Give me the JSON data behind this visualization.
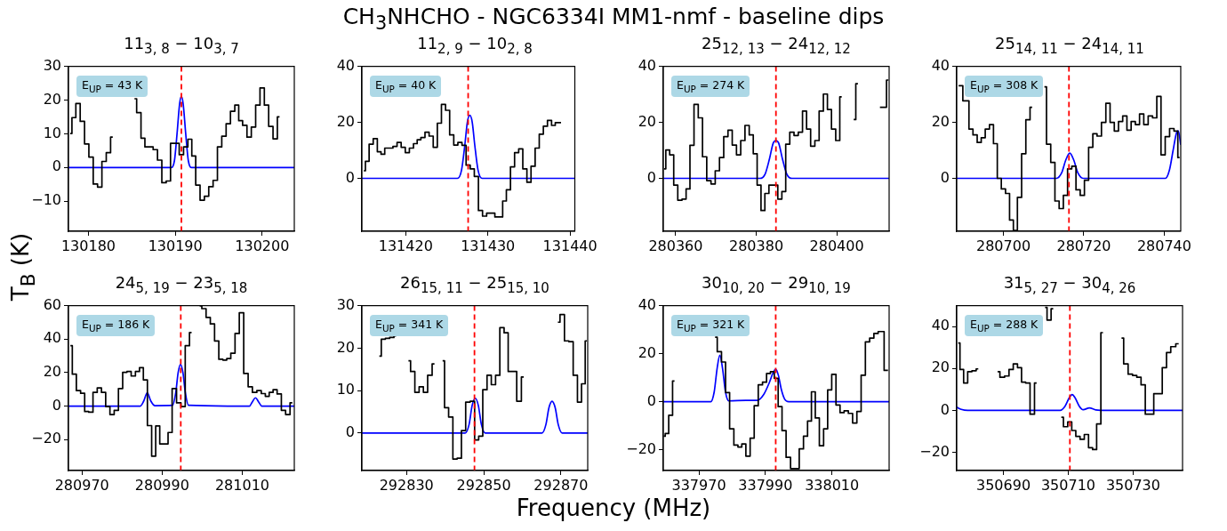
{
  "chart_data": [
    {
      "type": "other",
      "title": "CH$_{3}$NHCHO - NGC6334I MM1-nmf - baseline dips",
      "xlabel": "Frequency (MHz)",
      "ylabel": "T$_{B}$ (K)"
    },
    {
      "type": "step",
      "title": "11$_{3, 8}$ − 10$_{3, 7}$",
      "annotations": [
        "E$_{UP}$ = 43 K"
      ],
      "xlim": [
        130177.7,
        130203.7
      ],
      "xticks": [
        130180,
        130190,
        130200
      ],
      "ylim": [
        -18.9,
        30
      ],
      "yticks": [
        -10,
        0,
        10,
        20,
        30
      ],
      "ref_lines": [
        {
          "axis": "x",
          "value": 130190.7,
          "color": "#ff0000",
          "line_style": "dashed"
        }
      ],
      "series": [
        {
          "type": "step",
          "color": "#000000",
          "x": [
            130177.9,
            130178.3,
            130178.8,
            130179.3,
            130179.8,
            130180.3,
            130180.8,
            130181.3,
            130181.8,
            130182.3,
            130182.8,
            130183.3,
            130185.3,
            130185.8,
            130186.3,
            130186.7,
            130187.2,
            130187.7,
            130188.2,
            130188.7,
            130189.2,
            130189.7,
            130190.2,
            130190.7,
            130191.2,
            130191.7,
            130192.1,
            130192.6,
            130193.1,
            130193.6,
            130194.1,
            130194.6,
            130195.1,
            130195.6,
            130196.1,
            130196.6,
            130197.1,
            130197.5,
            130198.0,
            130198.5,
            130199.0,
            130199.5,
            130200.0,
            130200.5,
            130201.0,
            130201.5,
            130202.0
          ],
          "values": [
            10.1,
            14.8,
            19,
            13.7,
            7,
            3.1,
            -4.9,
            -5.8,
            1.8,
            4.4,
            9,
            null,
            20.4,
            16.3,
            8.7,
            6.1,
            6.1,
            5.3,
            2.2,
            -4.5,
            -4,
            7.2,
            7.2,
            3.8,
            6.1,
            8.4,
            3.4,
            -5.2,
            -9.7,
            -8.5,
            -5.7,
            -3.8,
            6.1,
            9.3,
            13,
            16.7,
            18.5,
            13.9,
            12.5,
            9,
            12,
            18.5,
            23.6,
            18.5,
            12.2,
            8.5,
            15
          ]
        },
        {
          "type": "line",
          "color": "#0000ff",
          "x": [
            130177.7,
            130189.5,
            130189.9,
            130190.2,
            130190.5,
            130190.7,
            130190.9,
            130191.2,
            130191.5,
            130191.9,
            130203.7
          ],
          "values": [
            0,
            0,
            2,
            10,
            19,
            21,
            19,
            10,
            2,
            0,
            0
          ]
        }
      ]
    },
    {
      "type": "step",
      "title": "11$_{2, 9}$ − 10$_{2, 8}$",
      "annotations": [
        "E$_{UP}$ = 40 K"
      ],
      "xlim": [
        131414.67,
        131440.58
      ],
      "xticks": [
        131420,
        131430,
        131440
      ],
      "ylim": [
        -18.9,
        40
      ],
      "yticks": [
        0,
        20,
        40
      ],
      "ref_lines": [
        {
          "axis": "x",
          "value": 131427.6,
          "color": "#ff0000",
          "line_style": "dashed"
        }
      ],
      "series": [
        {
          "type": "step",
          "color": "#000000",
          "x": [
            131414.9,
            131415.3,
            131415.8,
            131416.3,
            131416.8,
            131417.2,
            131417.7,
            131418.2,
            131418.7,
            131419.2,
            131419.7,
            131420.2,
            131420.7,
            131421.2,
            131421.6,
            131422.1,
            131422.6,
            131423.1,
            131423.6,
            131424.1,
            131424.6,
            131425.1,
            131425.6,
            131426.1,
            131426.6,
            131427.1,
            131427.6,
            131428.1,
            131428.6,
            131429.1,
            131429.6,
            131430.1,
            131430.6,
            131431.1,
            131431.6,
            131432.0,
            131432.5,
            131433.0,
            131433.5,
            131434.0,
            131434.5,
            131435.0,
            131435.5,
            131436.0,
            131436.5,
            131437.0,
            131437.5,
            131438.0,
            131438.4,
            131438.9
          ],
          "values": [
            2.7,
            6.1,
            12.2,
            14.2,
            9.5,
            8.6,
            10.8,
            10.8,
            11.4,
            12.8,
            11.1,
            9.2,
            10.8,
            12.4,
            13.8,
            14.6,
            16.5,
            15.1,
            11.1,
            19.7,
            26.4,
            24.3,
            15.5,
            11.9,
            12.8,
            11.8,
            4.7,
            3.4,
            0.7,
            -11.5,
            -13.5,
            -12.4,
            -12.4,
            -13.8,
            -13.8,
            -8.1,
            -4.1,
            4.1,
            9.2,
            10.5,
            3.4,
            -1.4,
            4.3,
            10.8,
            15.8,
            18.6,
            20.7,
            18.9,
            19.9,
            19.9
          ]
        },
        {
          "type": "line",
          "color": "#0000ff",
          "x": [
            131414.67,
            131426.3,
            131426.8,
            131427.2,
            131427.5,
            131427.8,
            131428.1,
            131428.4,
            131428.8,
            131429.3,
            131440.58
          ],
          "values": [
            0,
            0,
            3,
            12,
            20,
            22.5,
            20,
            12,
            3,
            0,
            0
          ]
        }
      ]
    },
    {
      "type": "step",
      "title": "25$_{12, 13}$ − 24$_{12, 12}$",
      "annotations": [
        "E$_{UP}$ = 274 K"
      ],
      "xlim": [
        280356.93,
        280413.0
      ],
      "xticks": [
        280360,
        280380,
        280400
      ],
      "ylim": [
        -18.9,
        40
      ],
      "yticks": [
        0,
        20,
        40
      ],
      "ref_lines": [
        {
          "axis": "x",
          "value": 280384.9,
          "color": "#ff0000",
          "line_style": "dashed"
        }
      ],
      "series": [
        {
          "type": "step",
          "color": "#000000",
          "x": [
            280357.12,
            280357.99,
            280359.04,
            280360.0,
            280361.05,
            280362.11,
            280363.07,
            280364.03,
            280365.08,
            280366.14,
            280367.19,
            280368.25,
            280369.3,
            280370.35,
            280371.41,
            280372.46,
            280373.52,
            280374.57,
            280375.63,
            280376.68,
            280377.74,
            280378.79,
            280379.75,
            280380.71,
            280381.67,
            280382.63,
            280383.68,
            280384.83,
            280385.89,
            280386.85,
            280387.8,
            280388.86,
            280389.91,
            280390.97,
            280392.02,
            280392.98,
            280394.04,
            280395.09,
            280396.15,
            280397.2,
            280398.16,
            280399.21,
            280400.27,
            280401.23,
            280402.28,
            280404.2,
            280405.25,
            280406.4,
            280410.72,
            280411.87,
            280412.83
          ],
          "values": [
            3.4,
            10.1,
            8.4,
            -2.4,
            -7.8,
            -7.4,
            -3.8,
            11.8,
            26.4,
            21.6,
            7.7,
            -0.8,
            -2,
            2.7,
            7.4,
            14.9,
            17.2,
            11.9,
            8.4,
            13.5,
            18.9,
            15.5,
            8.8,
            -2.4,
            -11.5,
            -5.4,
            -2.4,
            -2.4,
            -7.4,
            -4.7,
            12.2,
            16.5,
            15.3,
            16.5,
            24,
            17.6,
            11.5,
            13.5,
            24,
            30.1,
            24.6,
            17.6,
            13.5,
            29.1,
            null,
            21,
            33.8,
            null,
            25.4,
            25.4,
            35.1
          ]
        },
        {
          "type": "line",
          "color": "#0000ff",
          "x": [
            280356.93,
            280380.9,
            280382.2,
            280383.3,
            280384.2,
            280384.9,
            280385.6,
            280386.5,
            280387.6,
            280388.9,
            280413.0
          ],
          "values": [
            0,
            0,
            1.5,
            7,
            12.5,
            13.5,
            12.5,
            7,
            1.5,
            0,
            0
          ]
        }
      ]
    },
    {
      "type": "step",
      "title": "25$_{14, 11}$ − 24$_{14, 11}$",
      "annotations": [
        "E$_{UP}$ = 308 K"
      ],
      "xlim": [
        280688.38,
        280744.1
      ],
      "xticks": [
        280700,
        280720,
        280740
      ],
      "ylim": [
        -18.9,
        40
      ],
      "yticks": [
        0,
        20,
        40
      ],
      "ref_lines": [
        {
          "axis": "x",
          "value": 280716.3,
          "color": "#ff0000",
          "line_style": "dashed"
        }
      ],
      "series": [
        {
          "type": "step",
          "color": "#000000",
          "x": [
            280688.86,
            280690.95,
            280691.9,
            280692.95,
            280694.0,
            280694.95,
            280696.0,
            280697.05,
            280698.0,
            280698.95,
            280700.0,
            280701.05,
            280702.0,
            280702.95,
            280704.0,
            280705.05,
            280706.1,
            280707.14,
            280708.1,
            280710.19,
            280711.24,
            280712.29,
            280713.33,
            280714.38,
            280715.43,
            280716.48,
            280717.52,
            280718.57,
            280719.62,
            280720.67,
            280721.71,
            280722.76,
            280723.81,
            280724.95,
            280726.0,
            280727.05,
            280728.1,
            280729.14,
            280730.19,
            280731.24,
            280732.29,
            280733.33,
            280734.38,
            280735.43,
            280736.57,
            280737.62,
            280738.67,
            280739.71,
            280740.76,
            280741.9,
            280742.95,
            280743.81
          ],
          "values": [
            33.1,
            27.7,
            17.6,
            15.5,
            12.8,
            14.5,
            17.6,
            19.2,
            12.4,
            0,
            -3.8,
            -5.4,
            -14.9,
            -18.6,
            -6.8,
            8.8,
            20.9,
            25.4,
            null,
            32.7,
            12.2,
            5.7,
            -8.1,
            -10.8,
            -6.1,
            3.4,
            4.3,
            -4.1,
            -6.1,
            -0.7,
            11.1,
            15.9,
            15.1,
            20,
            26.8,
            20,
            16.9,
            20.3,
            22.3,
            17.2,
            20.3,
            19.2,
            23,
            19.2,
            22.3,
            21.6,
            29.3,
            8.4,
            14.9,
            17.8,
            16.9,
            7.4
          ]
        },
        {
          "type": "line",
          "color": "#0000ff",
          "x": [
            280688.38,
            280713.2,
            280714.5,
            280715.5,
            280716.5,
            280717.5,
            280718.5,
            280719.8,
            280740.3,
            280741.3,
            280742.2,
            280743.0,
            280743.5,
            280744.1
          ],
          "values": [
            0,
            0,
            2,
            6.5,
            9,
            6.5,
            2,
            0,
            0,
            3,
            10,
            16,
            17,
            12
          ]
        }
      ]
    },
    {
      "type": "step",
      "title": "24$_{5, 19}$ − 23$_{5, 18}$",
      "annotations": [
        "E$_{UP}$ = 186 K"
      ],
      "xlim": [
        280966.63,
        281022.99
      ],
      "xticks": [
        280970,
        280990,
        281010
      ],
      "ylim": [
        -38.4,
        60
      ],
      "yticks": [
        -20,
        0,
        20,
        40,
        60
      ],
      "ref_lines": [
        {
          "axis": "x",
          "value": 280994.66,
          "color": "#ff0000",
          "line_style": "dashed"
        }
      ],
      "series": [
        {
          "type": "step",
          "color": "#000000",
          "x": [
            280967.11,
            280968.07,
            280969.13,
            280970.19,
            280971.16,
            280972.22,
            280973.28,
            280974.34,
            280975.39,
            280976.45,
            280977.51,
            280978.57,
            280979.63,
            280980.69,
            280981.75,
            280982.81,
            280983.87,
            280984.84,
            280985.8,
            280986.86,
            280987.92,
            280988.88,
            280989.94,
            280991.0,
            280991.97,
            280993.03,
            280994.18,
            280995.24,
            280996.3,
            280997.36,
            280998.32,
            280999.38,
            281000.44,
            281001.5,
            281002.56,
            281003.62,
            281004.68,
            281005.65,
            281006.61,
            281007.67,
            281008.73,
            281009.79,
            281010.94,
            281012.0,
            281013.06,
            281014.22,
            281015.28,
            281016.24,
            281017.21,
            281018.17,
            281019.23,
            281020.29,
            281021.35,
            281022.5
          ],
          "values": [
            36.1,
            19.1,
            9.3,
            7.7,
            -3.2,
            -3.6,
            8.2,
            10.9,
            8.2,
            -0.2,
            -5,
            -2.5,
            10.5,
            20.2,
            20.7,
            18,
            20.7,
            23,
            15.7,
            -11.6,
            -29.8,
            -11.8,
            -22.5,
            -22.5,
            -15.7,
            10.5,
            2,
            -0.2,
            36.1,
            43.9,
            null,
            59.8,
            58.2,
            53,
            49.1,
            38.9,
            28,
            27.5,
            28.4,
            31.6,
            43.4,
            55.7,
            19.5,
            11.6,
            8.2,
            9.3,
            7.5,
            5.9,
            8.2,
            9.8,
            7.3,
            -2.5,
            -5,
            2
          ]
        },
        {
          "type": "line",
          "color": "#0000ff",
          "x": [
            280966.63,
            280984.5,
            280985.4,
            280986.3,
            280987.2,
            280988.2,
            280992.6,
            280993.4,
            280994.0,
            280994.6,
            280995.2,
            280995.8,
            280996.6,
            281011.8,
            281012.5,
            281013.3,
            281014.1,
            281014.9,
            281022.99
          ],
          "values": [
            0,
            0,
            3,
            8,
            3,
            0.3,
            0.5,
            8,
            20,
            25,
            20,
            8,
            0.5,
            0,
            2.5,
            5,
            2.5,
            0,
            0
          ]
        }
      ]
    },
    {
      "type": "step",
      "title": "26$_{15, 11}$ − 25$_{15, 10}$",
      "annotations": [
        "E$_{UP}$ = 341 K"
      ],
      "xlim": [
        292818.44,
        292876.93
      ],
      "xticks": [
        292830,
        292850,
        292870
      ],
      "ylim": [
        -8.8,
        30
      ],
      "yticks": [
        0,
        10,
        20,
        30
      ],
      "ref_lines": [
        {
          "axis": "x",
          "value": 292847.6,
          "color": "#ff0000",
          "line_style": "dashed"
        }
      ],
      "series": [
        {
          "type": "step",
          "color": "#000000",
          "x": [
            292822.96,
            292823.97,
            292825.08,
            292826.18,
            292827.29,
            292828.39,
            292830.5,
            292831.61,
            292832.71,
            292833.82,
            292834.92,
            292836.03,
            292837.24,
            292838.34,
            292839.35,
            292840.35,
            292841.46,
            292842.56,
            292843.67,
            292844.77,
            292845.88,
            292847.09,
            292848.19,
            292849.2,
            292850.3,
            292851.41,
            292852.51,
            292853.62,
            292854.72,
            292855.83,
            292856.83,
            292857.94,
            292859.15,
            292860.35,
            292861.46,
            292869.2,
            292870.3,
            292871.51,
            292872.61,
            292873.72,
            292874.82,
            292875.83,
            292876.73
          ],
          "values": [
            18.1,
            22.1,
            22.3,
            22.5,
            22.9,
            null,
            17,
            14.5,
            9.6,
            10.9,
            9.6,
            13.6,
            16.3,
            null,
            17,
            6,
            3.8,
            -6.1,
            -5.9,
            0.6,
            7.3,
            7.5,
            -1.6,
            -0.7,
            10.2,
            13.6,
            11.4,
            13.6,
            24.8,
            23.6,
            14.5,
            14.5,
            7.5,
            13.2,
            null,
            26.1,
            27.9,
            21.7,
            21.5,
            13.6,
            7.3,
            11.6,
            21.7
          ]
        },
        {
          "type": "line",
          "color": "#0000ff",
          "x": [
            292818.44,
            292845.2,
            292846.2,
            292847.0,
            292847.8,
            292848.6,
            292849.4,
            292850.4,
            292865.1,
            292866.1,
            292866.9,
            292867.7,
            292868.5,
            292869.3,
            292870.3,
            292876.93
          ],
          "values": [
            0,
            0,
            2,
            6.5,
            8.2,
            6.5,
            2,
            0,
            0,
            2,
            6,
            7.5,
            6,
            2,
            0,
            0
          ]
        }
      ]
    },
    {
      "type": "step",
      "title": "30$_{10, 20}$ − 29$_{10, 19}$",
      "annotations": [
        "E$_{UP}$ = 321 K"
      ],
      "xlim": [
        337959.3,
        338027.2
      ],
      "xticks": [
        337970,
        337990,
        338010
      ],
      "ylim": [
        -28.7,
        40
      ],
      "yticks": [
        -20,
        0,
        20,
        40
      ],
      "ref_lines": [
        {
          "axis": "x",
          "value": 337993.1,
          "color": "#ff0000",
          "line_style": "dashed"
        }
      ],
      "series": [
        {
          "type": "step",
          "color": "#000000",
          "x": [
            337959.42,
            337960.35,
            337961.51,
            337962.67,
            337963.84,
            337974.88,
            337976.16,
            337977.44,
            337978.6,
            337979.88,
            337981.16,
            337982.33,
            337983.49,
            337984.77,
            337986.05,
            337987.21,
            337988.49,
            337989.77,
            337990.93,
            337992.09,
            337993.26,
            337994.42,
            337995.58,
            337996.86,
            337998.26,
            337999.53,
            338000.81,
            338002.09,
            338003.26,
            338004.42,
            338005.58,
            338006.86,
            338008.14,
            338009.3,
            338010.58,
            338011.86,
            338013.02,
            338014.3,
            338015.58,
            338016.86,
            338018.14,
            338019.42,
            338020.7,
            338021.98,
            338023.26,
            338024.53,
            338026.86
          ],
          "values": [
            -14.4,
            -13.3,
            -5.7,
            8.6,
            null,
            26.8,
            20.8,
            16.5,
            3.8,
            -11.3,
            -18.1,
            -18.9,
            -17.6,
            -22.7,
            -15.2,
            -1.7,
            7,
            8.1,
            11.7,
            12.5,
            9.7,
            -2.1,
            -12.1,
            -23.2,
            -27.9,
            -27.9,
            -19.7,
            -14.4,
            -8.1,
            4.1,
            -6.8,
            -18.4,
            -11.3,
            4.9,
            11.4,
            -1.4,
            -4.6,
            -3.8,
            -4.9,
            -8.9,
            -4.1,
            11,
            24.9,
            26.5,
            28.4,
            29.2,
            13
          ]
        },
        {
          "type": "line",
          "color": "#0000ff",
          "x": [
            337959.3,
            337973.6,
            337974.6,
            337975.5,
            337976.3,
            337977.1,
            337978.0,
            337979.0,
            337984.1,
            337987.5,
            337989.5,
            337991.2,
            337992.3,
            337993.1,
            337993.9,
            337994.8,
            337995.8,
            337997.0,
            338027.2
          ],
          "values": [
            0,
            0,
            4,
            14,
            19.3,
            14,
            4,
            0.3,
            0.5,
            0.5,
            3,
            8,
            12,
            13.5,
            11,
            5,
            1,
            0,
            0
          ]
        }
      ]
    },
    {
      "type": "step",
      "title": "31$_{5, 27}$ − 30$_{4, 26}$",
      "annotations": [
        "E$_{UP}$ = 288 K"
      ],
      "xlim": [
        350675.6,
        350745.24
      ],
      "xticks": [
        350690,
        350710,
        350730
      ],
      "ylim": [
        -28.7,
        50
      ],
      "yticks": [
        -20,
        0,
        20,
        40
      ],
      "ref_lines": [
        {
          "axis": "x",
          "value": 350710.5,
          "color": "#ff0000",
          "line_style": "dashed"
        }
      ],
      "series": [
        {
          "type": "step",
          "color": "#000000",
          "x": [
            350676.07,
            350677.14,
            350678.33,
            350679.64,
            350680.95,
            350682.26,
            350683.69,
            350688.21,
            350689.64,
            350691.07,
            350692.38,
            350693.69,
            350695.0,
            350696.19,
            350697.5,
            350698.93,
            350700.24,
            350701.55,
            350702.86,
            350704.05,
            350705.36,
            350706.67,
            350707.86,
            350709.17,
            350710.48,
            350711.67,
            350712.98,
            350714.29,
            350715.6,
            350716.9,
            350718.1,
            350719.4,
            350720.71,
            350722.02,
            350726.43,
            350727.74,
            350729.17,
            350730.48,
            350731.79,
            350733.1,
            350734.4,
            350735.71,
            350737.02,
            350738.33,
            350739.64,
            350740.95,
            350742.26,
            350744.05
          ],
          "values": [
            32.2,
            19.5,
            13.1,
            18.5,
            18.9,
            19.8,
            null,
            18.5,
            15.8,
            16.4,
            19.5,
            22.2,
            20.4,
            13.5,
            13.1,
            -1.8,
            13.1,
            null,
            49.1,
            43.1,
            48.5,
            null,
            -3.3,
            -7.8,
            -5.5,
            -9.6,
            -12.4,
            -13.8,
            -11.5,
            -17.8,
            -18.7,
            -6.5,
            37.1,
            null,
            34.5,
            22.2,
            17.3,
            16.7,
            15.8,
            12.2,
            -1.8,
            -1.8,
            8,
            8,
            20.4,
            27.6,
            30.4,
            31.8
          ]
        },
        {
          "type": "line",
          "color": "#0000ff",
          "x": [
            350675.6,
            350677.0,
            350679.0,
            350707.5,
            350709.0,
            350710.3,
            350711.2,
            350712.1,
            350713.4,
            350714.6,
            350716.5,
            350718.5,
            350720.0,
            350745.24
          ],
          "values": [
            1.5,
            0.5,
            0,
            0,
            2,
            6,
            7.5,
            6,
            2,
            0.3,
            1.2,
            0.2,
            0,
            0
          ]
        }
      ]
    }
  ]
}
